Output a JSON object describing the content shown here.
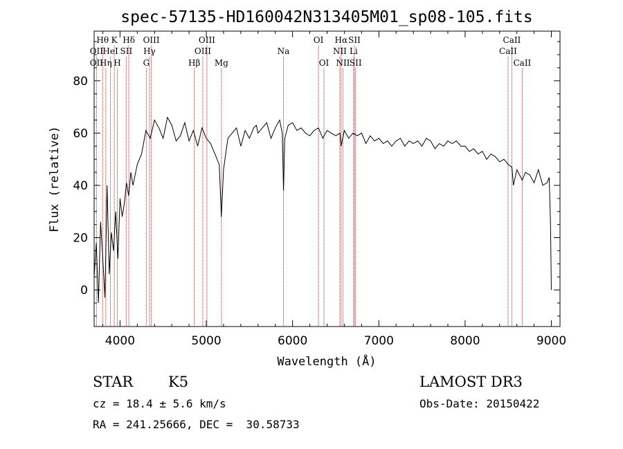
{
  "chart_data": {
    "type": "line",
    "title": "spec-57135-HD160042N313405M01_sp08-105.fits",
    "xlabel": "Wavelength (Å)",
    "ylabel": "Flux (relative)",
    "xlim": [
      3700,
      9100
    ],
    "ylim": [
      -14,
      99
    ],
    "xticks": [
      4000,
      5000,
      6000,
      7000,
      8000,
      9000
    ],
    "yticks": [
      0,
      20,
      40,
      60,
      80
    ],
    "grid": false,
    "series": [
      {
        "name": "spectrum",
        "x": [
          3700,
          3725,
          3750,
          3775,
          3800,
          3825,
          3850,
          3875,
          3900,
          3925,
          3950,
          3975,
          4000,
          4025,
          4050,
          4075,
          4100,
          4125,
          4150,
          4175,
          4200,
          4250,
          4300,
          4350,
          4400,
          4450,
          4500,
          4550,
          4600,
          4650,
          4700,
          4750,
          4800,
          4850,
          4900,
          4950,
          5000,
          5050,
          5100,
          5150,
          5175,
          5200,
          5250,
          5300,
          5350,
          5400,
          5450,
          5500,
          5550,
          5580,
          5600,
          5650,
          5700,
          5750,
          5800,
          5850,
          5880,
          5895,
          5910,
          5950,
          6000,
          6050,
          6100,
          6150,
          6200,
          6250,
          6300,
          6350,
          6400,
          6450,
          6500,
          6550,
          6563,
          6600,
          6650,
          6700,
          6750,
          6800,
          6850,
          6900,
          6950,
          7000,
          7050,
          7100,
          7150,
          7200,
          7250,
          7300,
          7350,
          7400,
          7450,
          7500,
          7550,
          7600,
          7650,
          7700,
          7750,
          7800,
          7850,
          7900,
          7950,
          8000,
          8050,
          8100,
          8150,
          8200,
          8250,
          8300,
          8350,
          8400,
          8450,
          8500,
          8542,
          8560,
          8600,
          8662,
          8700,
          8750,
          8800,
          8850,
          8900,
          8950,
          8975,
          8990,
          9000
        ],
        "y": [
          5,
          18,
          -5,
          26,
          12,
          -3,
          40,
          6,
          22,
          15,
          30,
          12,
          35,
          28,
          33,
          41,
          36,
          45,
          40,
          44,
          48,
          52,
          61,
          58,
          65,
          62,
          58,
          66,
          63,
          57,
          59,
          64,
          57,
          61,
          55,
          62,
          58,
          56,
          52,
          48,
          28,
          46,
          58,
          60,
          62,
          55,
          61,
          58,
          62,
          63,
          60,
          62,
          64,
          58,
          62,
          65,
          60,
          38,
          58,
          63,
          64,
          61,
          62,
          60,
          59,
          61,
          62,
          58,
          61,
          60,
          59,
          60,
          55,
          61,
          58,
          60,
          59,
          60,
          56,
          59,
          57,
          58,
          56,
          57,
          55,
          57,
          58,
          55,
          57,
          56,
          57,
          55,
          58,
          57,
          54,
          56,
          55,
          57,
          56,
          57,
          55,
          55,
          53,
          54,
          52,
          53,
          50,
          52,
          51,
          49,
          50,
          48,
          47,
          40,
          46,
          42,
          45,
          44,
          41,
          46,
          40,
          41,
          43,
          25,
          0
        ]
      }
    ],
    "line_annotations": [
      {
        "label": "Hθ",
        "x": 3798,
        "row": 1
      },
      {
        "label": "OII",
        "x": 3727,
        "row": 2
      },
      {
        "label": "OII",
        "x": 3727,
        "row": 3
      },
      {
        "label": "Hη",
        "x": 3835,
        "row": 3
      },
      {
        "label": "HeI",
        "x": 3889,
        "row": 2
      },
      {
        "label": "K",
        "x": 3934,
        "row": 1
      },
      {
        "label": "H",
        "x": 3969,
        "row": 3
      },
      {
        "label": "SII",
        "x": 4072,
        "row": 2
      },
      {
        "label": "Hδ",
        "x": 4102,
        "row": 1
      },
      {
        "label": "OIII",
        "x": 4363,
        "row": 1
      },
      {
        "label": "Hγ",
        "x": 4341,
        "row": 2
      },
      {
        "label": "G",
        "x": 4305,
        "row": 3
      },
      {
        "label": "Hβ",
        "x": 4861,
        "row": 3
      },
      {
        "label": "OIII",
        "x": 5007,
        "row": 1
      },
      {
        "label": "OIII",
        "x": 4959,
        "row": 2
      },
      {
        "label": "Mg",
        "x": 5175,
        "row": 3
      },
      {
        "label": "Na",
        "x": 5894,
        "row": 2
      },
      {
        "label": "OI",
        "x": 6300,
        "row": 1
      },
      {
        "label": "OI",
        "x": 6364,
        "row": 3
      },
      {
        "label": "Hα",
        "x": 6563,
        "row": 1
      },
      {
        "label": "SII",
        "x": 6717,
        "row": 1
      },
      {
        "label": "NII",
        "x": 6548,
        "row": 2
      },
      {
        "label": "Li",
        "x": 6708,
        "row": 2
      },
      {
        "label": "NII",
        "x": 6584,
        "row": 3
      },
      {
        "label": "SII",
        "x": 6731,
        "row": 3
      },
      {
        "label": "CaII",
        "x": 8542,
        "row": 1
      },
      {
        "label": "CaII",
        "x": 8498,
        "row": 2
      },
      {
        "label": "CaII",
        "x": 8662,
        "row": 3
      }
    ],
    "colors": {
      "spectrum": "#000000",
      "marker_lines": "#b22222",
      "axes": "#000000"
    }
  },
  "info": {
    "object_class": "STAR",
    "subclass": "K5",
    "survey": "LAMOST DR3",
    "cz": "cz = 18.4 ± 5.6 km/s",
    "obs_date": "Obs-Date: 20150422",
    "coords": "RA = 241.25666, DEC =  30.58733"
  }
}
